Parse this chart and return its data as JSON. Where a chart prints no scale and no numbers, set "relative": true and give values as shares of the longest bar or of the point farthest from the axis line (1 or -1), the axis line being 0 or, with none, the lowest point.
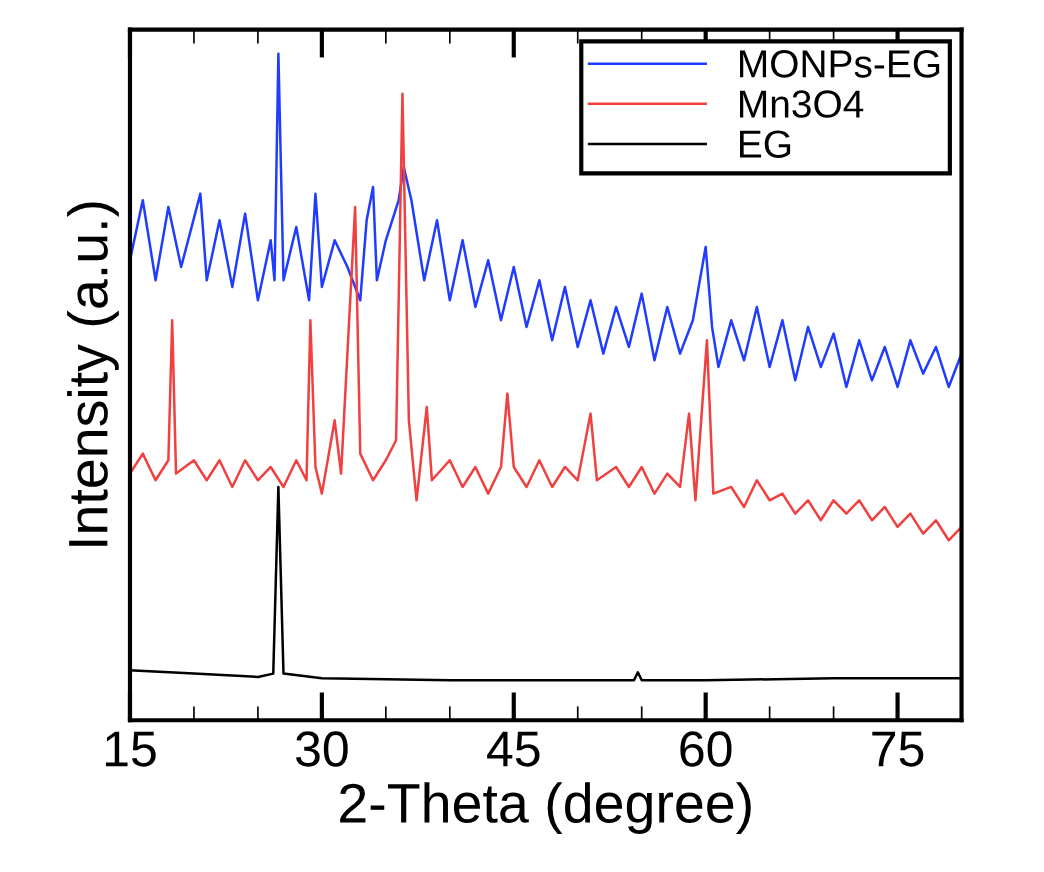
{
  "chart_data": {
    "type": "line",
    "xlabel": "2-Theta (degree)",
    "ylabel": "Intensity (a.u.)",
    "relative": true,
    "xlim": [
      15,
      80
    ],
    "xticks": [
      15,
      30,
      45,
      60,
      75
    ],
    "legend": "top right",
    "grid": false,
    "marker": "none",
    "line_style": "solid",
    "tick_labels": "x",
    "series": [
      {
        "name": "MONPs-EG",
        "color": "#1f3cff",
        "x": [
          15,
          16,
          17,
          18,
          19,
          20.5,
          21,
          22,
          23,
          24,
          25,
          26,
          26.3,
          26.6,
          27,
          28,
          29,
          29.5,
          30,
          31,
          32,
          33,
          33.5,
          34,
          34.3,
          35,
          36,
          36.4,
          37,
          37.5,
          38,
          39,
          40,
          41,
          42,
          43,
          44,
          45,
          46,
          47,
          48,
          49,
          50,
          51,
          52,
          53,
          54,
          55,
          56,
          57,
          58,
          59,
          60,
          60.5,
          61,
          62,
          63,
          64,
          65,
          66,
          67,
          68,
          69,
          70,
          71,
          72,
          73,
          74,
          75,
          76,
          77,
          78,
          79,
          80
        ],
        "values": [
          0.69,
          0.78,
          0.66,
          0.77,
          0.68,
          0.79,
          0.66,
          0.75,
          0.65,
          0.76,
          0.63,
          0.72,
          0.66,
          1.0,
          0.66,
          0.74,
          0.63,
          0.79,
          0.65,
          0.72,
          0.68,
          0.63,
          0.75,
          0.8,
          0.66,
          0.72,
          0.78,
          0.83,
          0.78,
          0.72,
          0.66,
          0.75,
          0.63,
          0.72,
          0.62,
          0.69,
          0.6,
          0.68,
          0.59,
          0.66,
          0.57,
          0.65,
          0.56,
          0.63,
          0.55,
          0.62,
          0.56,
          0.64,
          0.54,
          0.62,
          0.55,
          0.6,
          0.71,
          0.59,
          0.53,
          0.6,
          0.54,
          0.62,
          0.53,
          0.6,
          0.51,
          0.59,
          0.53,
          0.58,
          0.5,
          0.57,
          0.51,
          0.56,
          0.5,
          0.57,
          0.52,
          0.56,
          0.5,
          0.55
        ]
      },
      {
        "name": "Mn3O4",
        "color": "#f04040",
        "x": [
          15,
          16,
          17,
          18,
          18.3,
          18.6,
          20,
          21,
          22,
          23,
          24,
          25,
          26,
          27,
          28,
          28.8,
          29.1,
          29.5,
          30,
          31,
          31.5,
          32.6,
          33,
          34,
          35,
          35.8,
          36.3,
          36.8,
          37.4,
          38.2,
          38.6,
          40,
          41,
          42,
          43,
          44,
          44.5,
          45,
          46,
          47,
          48,
          49,
          50,
          51,
          51.5,
          53,
          54,
          55,
          56,
          57,
          58,
          58.7,
          59.2,
          60.1,
          60.6,
          62,
          63,
          64,
          65,
          66,
          67,
          68,
          69,
          70,
          71,
          72,
          73,
          74,
          75,
          76,
          77,
          78,
          79,
          80
        ],
        "values": [
          0.37,
          0.4,
          0.36,
          0.39,
          0.6,
          0.37,
          0.39,
          0.36,
          0.39,
          0.35,
          0.39,
          0.36,
          0.38,
          0.35,
          0.39,
          0.36,
          0.6,
          0.38,
          0.34,
          0.45,
          0.37,
          0.77,
          0.4,
          0.36,
          0.39,
          0.42,
          0.94,
          0.45,
          0.33,
          0.47,
          0.36,
          0.39,
          0.35,
          0.38,
          0.34,
          0.38,
          0.49,
          0.38,
          0.35,
          0.39,
          0.35,
          0.38,
          0.36,
          0.46,
          0.36,
          0.38,
          0.35,
          0.38,
          0.34,
          0.37,
          0.35,
          0.46,
          0.33,
          0.57,
          0.34,
          0.35,
          0.32,
          0.36,
          0.33,
          0.34,
          0.31,
          0.33,
          0.3,
          0.33,
          0.31,
          0.33,
          0.3,
          0.32,
          0.29,
          0.31,
          0.28,
          0.3,
          0.27,
          0.29
        ]
      },
      {
        "name": "EG",
        "color": "#000000",
        "x": [
          15,
          20,
          25,
          26.2,
          26.6,
          27,
          30,
          40,
          50,
          54.4,
          54.7,
          55,
          60,
          70,
          80
        ],
        "values": [
          0.075,
          0.07,
          0.065,
          0.07,
          0.35,
          0.07,
          0.063,
          0.06,
          0.06,
          0.06,
          0.072,
          0.06,
          0.06,
          0.063,
          0.063
        ]
      }
    ]
  }
}
